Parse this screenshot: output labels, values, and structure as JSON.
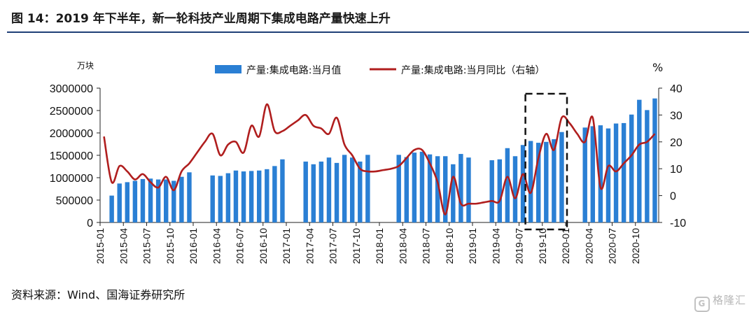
{
  "title": "图 14：2019 年下半年，新一轮科技产业周期下集成电路产量快速上升",
  "source": "资料来源：Wind、国海证券研究所",
  "watermark": "格隆汇",
  "watermark_logo": "G",
  "colors": {
    "bar": "#2a7fd4",
    "line": "#b01e1e",
    "rule": "#1f3f77"
  },
  "chart_data": {
    "type": "bar+line",
    "left_axis": {
      "unit": "万块",
      "ylim": [
        0,
        3000000
      ],
      "ticks": [
        0,
        500000,
        1000000,
        1500000,
        2000000,
        2500000,
        3000000
      ]
    },
    "right_axis": {
      "unit": "%",
      "ylim": [
        -10,
        40
      ],
      "ticks": [
        -10,
        0,
        10,
        20,
        30,
        40
      ]
    },
    "x_tick_labels": [
      "2015-01",
      "2015-04",
      "2015-07",
      "2015-10",
      "2016-01",
      "2016-04",
      "2016-07",
      "2016-10",
      "2017-01",
      "2017-04",
      "2017-07",
      "2017-10",
      "2018-01",
      "2018-04",
      "2018-07",
      "2018-10",
      "2019-01",
      "2019-04",
      "2019-07",
      "2019-10",
      "2020-01",
      "2020-04",
      "2020-07",
      "2020-10"
    ],
    "legend_position": "top",
    "highlight_box": {
      "from": "2019-08",
      "to": "2019-12",
      "style": "dashed"
    },
    "series": [
      {
        "name": "产量:集成电路:当月值",
        "type": "bar",
        "axis": "left",
        "x": [
          "2015-02",
          "2015-03",
          "2015-04",
          "2015-05",
          "2015-06",
          "2015-07",
          "2015-08",
          "2015-09",
          "2015-10",
          "2015-11",
          "2015-12",
          "2016-03",
          "2016-04",
          "2016-05",
          "2016-06",
          "2016-07",
          "2016-08",
          "2016-09",
          "2016-10",
          "2016-11",
          "2016-12",
          "2017-03",
          "2017-04",
          "2017-05",
          "2017-06",
          "2017-07",
          "2017-08",
          "2017-09",
          "2017-10",
          "2017-11",
          "2018-03",
          "2018-04",
          "2018-05",
          "2018-06",
          "2018-07",
          "2018-08",
          "2018-09",
          "2018-10",
          "2018-11",
          "2018-12",
          "2019-03",
          "2019-04",
          "2019-05",
          "2019-06",
          "2019-07",
          "2019-08",
          "2019-09",
          "2019-10",
          "2019-11",
          "2019-12",
          "2020-03",
          "2020-04",
          "2020-05",
          "2020-06",
          "2020-07",
          "2020-08",
          "2020-09",
          "2020-10",
          "2020-11",
          "2020-12"
        ],
        "values": [
          600000,
          870000,
          900000,
          930000,
          970000,
          980000,
          960000,
          960000,
          930000,
          1020000,
          1120000,
          1050000,
          1040000,
          1100000,
          1160000,
          1140000,
          1150000,
          1160000,
          1190000,
          1260000,
          1410000,
          1360000,
          1300000,
          1360000,
          1450000,
          1330000,
          1510000,
          1450000,
          1360000,
          1510000,
          1510000,
          1460000,
          1560000,
          1580000,
          1520000,
          1480000,
          1480000,
          1300000,
          1530000,
          1450000,
          1390000,
          1410000,
          1660000,
          1480000,
          1730000,
          1820000,
          1780000,
          1800000,
          1860000,
          2020000,
          2120000,
          2150000,
          2170000,
          2100000,
          2210000,
          2220000,
          2410000,
          2740000,
          2510000,
          2770000
        ]
      },
      {
        "name": "产量:集成电路:当月同比（右轴）",
        "type": "line",
        "axis": "right",
        "x": [
          "2015-01",
          "2015-02",
          "2015-03",
          "2015-04",
          "2015-05",
          "2015-06",
          "2015-07",
          "2015-08",
          "2015-09",
          "2015-10",
          "2015-11",
          "2015-12",
          "2016-01",
          "2016-02",
          "2016-03",
          "2016-04",
          "2016-05",
          "2016-06",
          "2016-07",
          "2016-08",
          "2016-09",
          "2016-10",
          "2016-11",
          "2016-12",
          "2017-01",
          "2017-02",
          "2017-03",
          "2017-04",
          "2017-05",
          "2017-06",
          "2017-07",
          "2017-08",
          "2017-09",
          "2017-10",
          "2017-11",
          "2017-12",
          "2018-01",
          "2018-02",
          "2018-03",
          "2018-04",
          "2018-05",
          "2018-06",
          "2018-07",
          "2018-08",
          "2018-09",
          "2018-10",
          "2018-11",
          "2018-12",
          "2019-01",
          "2019-02",
          "2019-03",
          "2019-04",
          "2019-05",
          "2019-06",
          "2019-07",
          "2019-08",
          "2019-09",
          "2019-10",
          "2019-11",
          "2019-12",
          "2020-01",
          "2020-02",
          "2020-03",
          "2020-04",
          "2020-05",
          "2020-06",
          "2020-07",
          "2020-08",
          "2020-09",
          "2020-10",
          "2020-11",
          "2020-12"
        ],
        "values": [
          22,
          5,
          11,
          9,
          6,
          8,
          5,
          3,
          7,
          2,
          9,
          12,
          16,
          20,
          23,
          15,
          19,
          20,
          16,
          26,
          22,
          34,
          24,
          24,
          26,
          28,
          30,
          26,
          25,
          23,
          29,
          19,
          15,
          10,
          9,
          9,
          9.5,
          10,
          11,
          14,
          17,
          17,
          12,
          5,
          -7,
          7,
          -3,
          -3,
          -3,
          -2.5,
          -2,
          -2,
          7,
          -1,
          8,
          1,
          14,
          23,
          17,
          29,
          27,
          23,
          20,
          29,
          3,
          11,
          9,
          12,
          15,
          19,
          20,
          23
        ]
      }
    ]
  }
}
